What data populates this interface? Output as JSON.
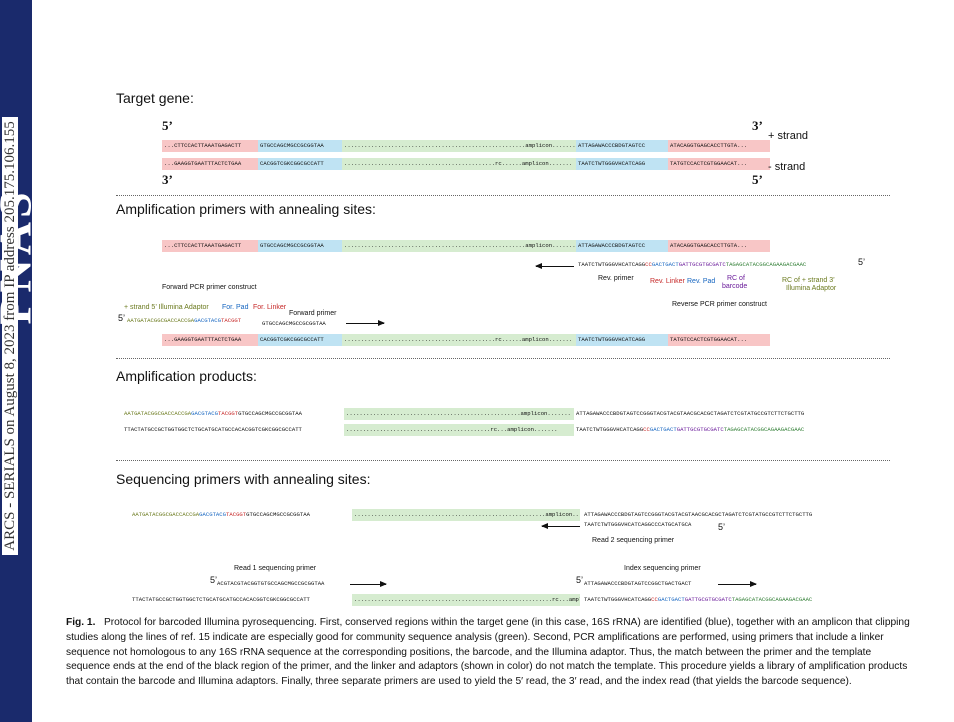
{
  "sidebar": {
    "logo": "PNAS",
    "download_note": "ARCS - SERIALS on August 8, 2023 from IP address 205.175.106.155"
  },
  "sections": {
    "target": "Target gene:",
    "amp_primers": "Amplification primers with annealing sites:",
    "amp_products": "Amplification products:",
    "seq_primers": "Sequencing primers with annealing sites:"
  },
  "ends": {
    "five": "5’",
    "three": "3’"
  },
  "strands": {
    "plus": "+ strand",
    "minus": "- strand"
  },
  "seq": {
    "top_pink": "...CTTCCACTTAAATGAGACTT",
    "top_blue": "GTGCCAGCMGCCGCGGTAA",
    "top_green": "......................................................amplicon.......",
    "top_blue2": "ATTAGAWACCCBDGTAGTCC",
    "top_pink2": "ATACAGGTGAGCACCTTGTA...",
    "bot_pink": "...GAAGGTGAATTTACTCTGAA",
    "bot_blue": "CACGGTCGKCGGCGCCATT",
    "bot_green": ".............................................rc......amplicon.......",
    "bot_blue2": "TAATCTWTGGGVHCATCAGG",
    "bot_pink2": "TATGTCCACTCGTGGAACAT...",
    "rev_primer": "TAATCTWTGGGVHCATCAGG",
    "rev_linker": "CC",
    "rev_pad": "GACTGACT",
    "rev_barcode": "GATTGCGTGCGATC",
    "rev_adaptor": "TAGAGCATACGGCAGAAGACGAAC",
    "fwd_adaptor": "AATGATACGGCGACCACCGA",
    "fwd_pad": "GACGTACG",
    "fwd_linker": "TACGGT",
    "fwd_primer": "GTGCCAGCMGCCGCGGTAA",
    "prod_top_right": "ATTAGAWACCCBDGTAGTCCGGGTACGTACGTAACGCACGCTAGATCTCGTATGCCGTCTTCTGCTTG",
    "prod_top_green": "....................................................amplicon.......",
    "prod_bot_green": "...........................................rc...amplicon.......",
    "prod_bot_left": "TTACTATGCCGCTGGTGGCTCTGCATGCATGCCACACGGTCGKCGGCGCCATT",
    "read2_primer": "TAATCTWTGGGVHCATCAGGCCCATGCATGCA",
    "read1_primer": "ACGTACGTACGGTGTGCCAGCMGCCGCGGTAA",
    "index_primer": "ATTAGAWACCCBDGTAGTCCGGCTGACTGACT",
    "seq1_green": ".........................................................amplicon.......",
    "seq2_green": "...........................................................rc...amplicon......."
  },
  "labels": {
    "rev_primer": "Rev. primer",
    "rev_linker": "Rev. Linker",
    "rev_pad": "Rev. Pad",
    "rc_barcode_1": "RC of",
    "rc_barcode_2": "barcode",
    "rc_adaptor_1": "RC of + strand 3’",
    "rc_adaptor_2": "Illumina Adaptor",
    "fwd_construct": "Forward PCR primer construct",
    "rev_construct": "Reverse PCR primer construct",
    "fwd_adaptor": "+ strand 5’ Illumina Adaptor",
    "fwd_pad": "For. Pad",
    "fwd_linker": "For. Linker",
    "fwd_primer_1": "Forward primer",
    "read1": "Read 1 sequencing primer",
    "read2": "Read 2 sequencing primer",
    "index": "Index sequencing primer"
  },
  "caption": {
    "fig": "Fig. 1.",
    "text": "Protocol for barcoded Illumina pyrosequencing. First, conserved regions within the target gene (in this case, 16S rRNA) are identified (blue), together with an amplicon that clipping studies along the lines of ref. 15 indicate are especially good for community sequence analysis (green). Second, PCR amplifications are performed, using primers that include a linker sequence not homologous to any 16S rRNA sequence at the corresponding positions, the barcode, and the Illumina adaptor. Thus, the match between the primer and the template sequence ends at the end of the black region of the primer, and the linker and adaptors (shown in color) do not match the template. This procedure yields a library of amplification products that contain the barcode and Illumina adaptors. Finally, three separate primers are used to yield the 5′ read, the 3′ read, and the index read (that yields the barcode sequence)."
  }
}
